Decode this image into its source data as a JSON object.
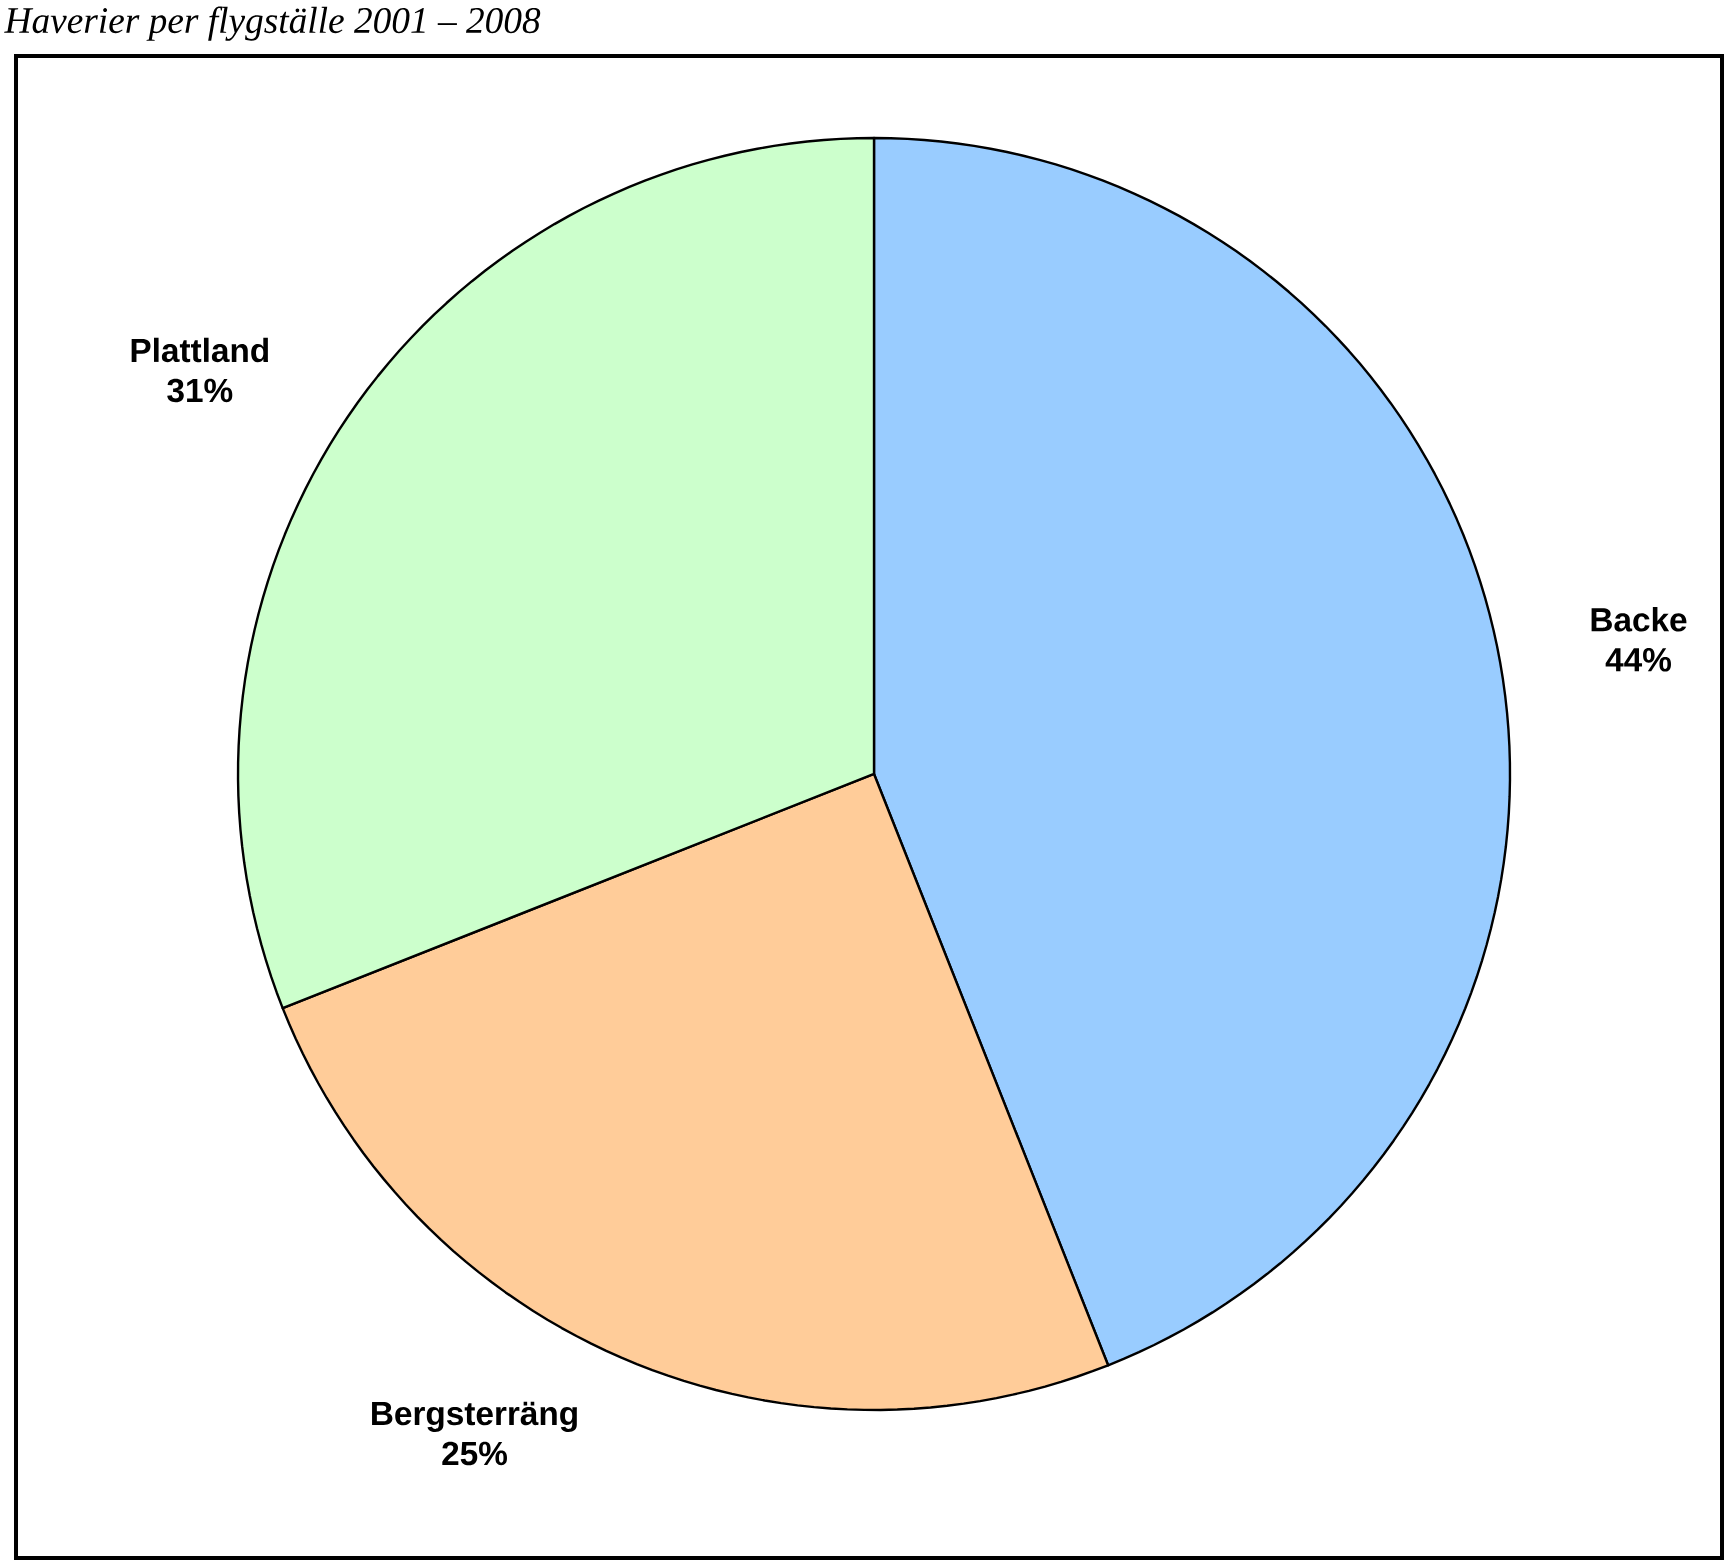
{
  "chart_data": {
    "type": "pie",
    "title": "Haverier per flygställe 2001 – 2008",
    "categories": [
      "Backe",
      "Bergsterräng",
      "Plattland"
    ],
    "values": [
      44,
      25,
      31
    ],
    "value_labels": [
      "44%",
      "25%",
      "31%"
    ],
    "colors": [
      "#99ccff",
      "#ffcc99",
      "#ccffcc"
    ]
  }
}
